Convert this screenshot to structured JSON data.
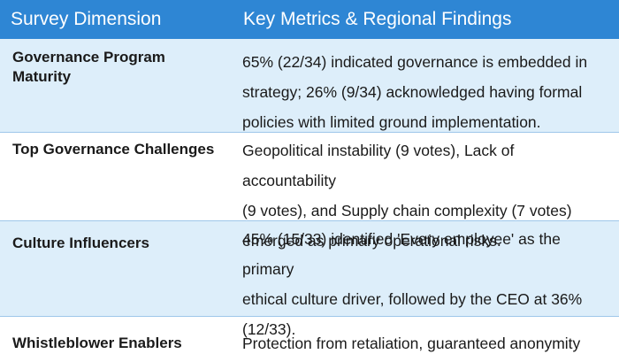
{
  "header": {
    "col1": "Survey Dimension",
    "col2": "Key Metrics & Regional Findings"
  },
  "rows": [
    {
      "dimension": "Governance Program Maturity",
      "lines": [
        "65% (22/34) indicated governance is embedded in",
        "strategy; 26% (9/34) acknowledged having formal",
        "policies with limited ground implementation."
      ]
    },
    {
      "dimension": "Top Governance Challenges",
      "lines": [
        "Geopolitical instability (9 votes), Lack of accountability",
        "(9 votes), and Supply chain complexity (7 votes)",
        "emerged as primary operational risks."
      ]
    },
    {
      "dimension": "Culture Influencers",
      "lines": [
        "45% (15/33) identified 'Every employee' as the primary",
        "ethical culture driver, followed by the CEO at 36%",
        "(12/33)."
      ]
    },
    {
      "dimension": "Whistleblower Enablers",
      "lines": [
        "Protection from retaliation, guaranteed anonymity"
      ]
    }
  ],
  "colors": {
    "header_bg": "#2e86d4",
    "shade_row": "#ddeefa",
    "border": "#9fc7ea"
  }
}
